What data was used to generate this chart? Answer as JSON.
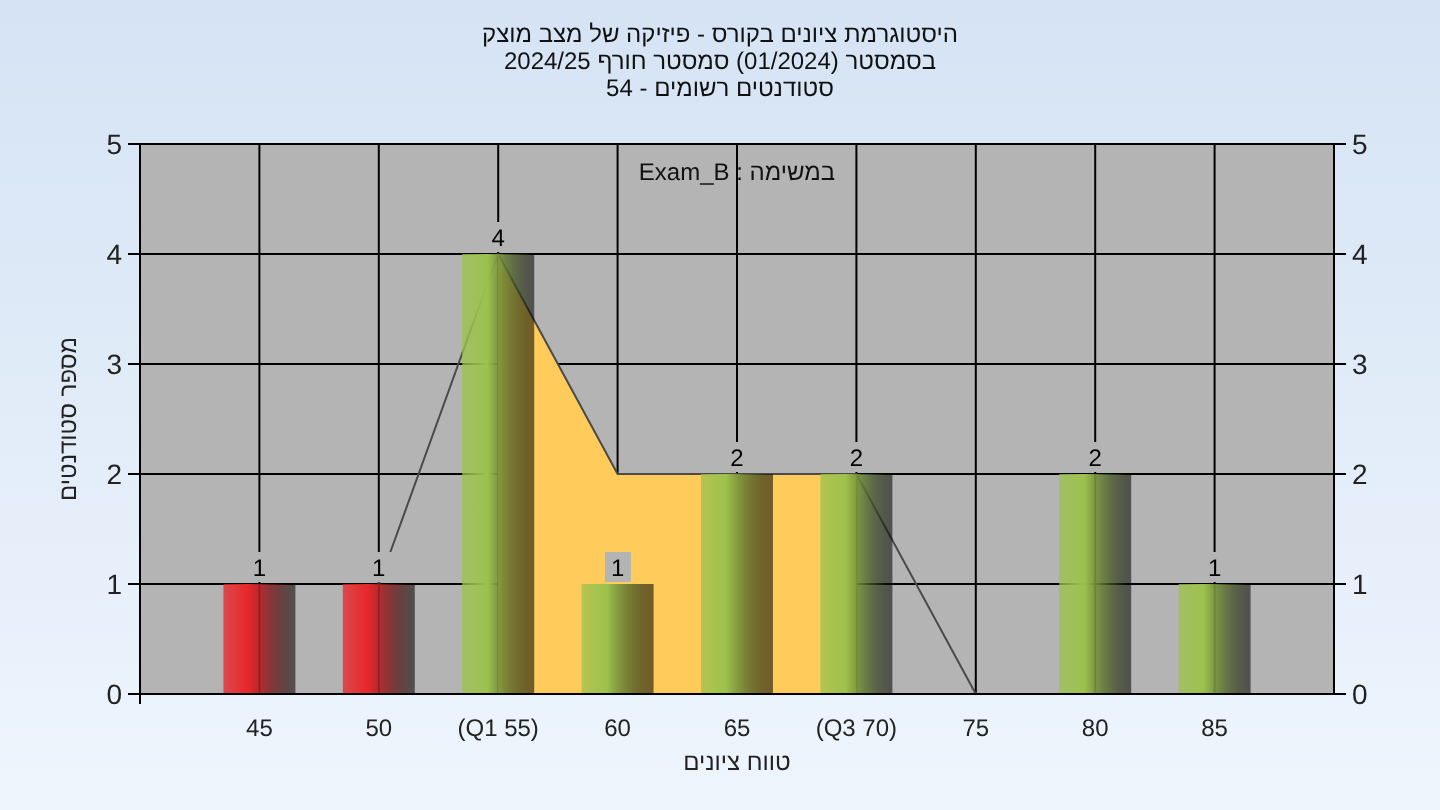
{
  "chart_data": {
    "type": "bar",
    "title": "היסטוגרמת ציונים בקורס - פיזיקה של מצב מוצק",
    "subtitle": "בסמסטר  (01/2024)  סמסטר חורף 2024/25\nסטודנטים רשומים - 54",
    "annotations": [
      "במשימה : Exam_B"
    ],
    "xlabel": "טווח ציונים",
    "ylabel": "מספר סטודנטים",
    "categories": [
      "45",
      "50",
      "(Q1 55)",
      "60",
      "65",
      "(Q3 70)",
      "75",
      "80",
      "85"
    ],
    "series": [
      {
        "type": "area",
        "color": "#ffcc5c",
        "values": [
          null,
          null,
          4,
          2,
          2,
          2,
          null,
          null,
          null
        ]
      },
      {
        "type": "line",
        "color": "#4a4a4a",
        "values": [
          null,
          1,
          4,
          2,
          2,
          2,
          0,
          null,
          null
        ]
      },
      {
        "colors": [
          "#e8262a",
          "#e8262a",
          "#9cc24c",
          "#9cc24c",
          "#9cc24c",
          "#9cc24c",
          "#9cc24c",
          "#9cc24c",
          "#9cc24c"
        ],
        "values": [
          1,
          1,
          4,
          1,
          2,
          2,
          0,
          2,
          1
        ],
        "value_labels": [
          "1",
          "1",
          "4",
          "1",
          "2",
          "2",
          null,
          "2",
          "1"
        ]
      }
    ],
    "ylim": [
      0,
      5
    ],
    "yticks": [
      0,
      1,
      2,
      3,
      4,
      5
    ],
    "y2lim": [
      0,
      5
    ],
    "y2ticks": [
      0,
      1,
      2,
      3,
      4,
      5
    ],
    "grid": true
  }
}
